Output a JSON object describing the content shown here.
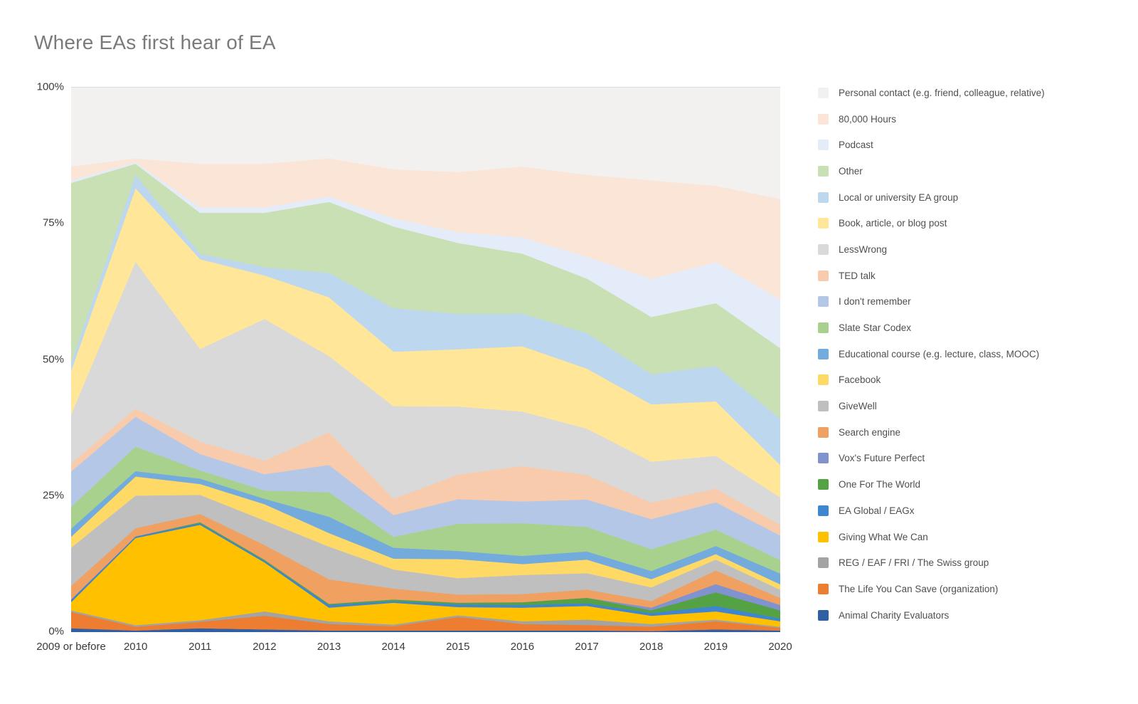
{
  "title": "Where EAs first hear of EA",
  "chart_data": {
    "type": "area",
    "stacked": true,
    "percent_stacked": true,
    "grid": false,
    "legend_position": "right",
    "ylim": [
      0,
      100
    ],
    "y_ticks": [
      "100%",
      "75%",
      "50%",
      "25%",
      "0%"
    ],
    "y_tick_values": [
      100,
      75,
      50,
      25,
      0
    ],
    "categories": [
      "2009 or before",
      "2010",
      "2011",
      "2012",
      "2013",
      "2014",
      "2015",
      "2016",
      "2017",
      "2018",
      "2019",
      "2020"
    ],
    "series": [
      {
        "name": "Personal contact (e.g. friend, colleague, relative)",
        "color": "#f2f1ef",
        "values": [
          14.5,
          13.0,
          14.0,
          14.0,
          13.0,
          15.0,
          15.5,
          14.5,
          16.0,
          17.0,
          18.0,
          20.5
        ]
      },
      {
        "name": "80,000 Hours",
        "color": "#fbe5d6",
        "values": [
          2.5,
          0.7,
          8.0,
          8.0,
          7.0,
          9.0,
          11.0,
          13.0,
          15.0,
          18.0,
          14.0,
          18.5
        ]
      },
      {
        "name": "Podcast",
        "color": "#e4ecf9",
        "values": [
          0.5,
          0.3,
          1.0,
          1.0,
          1.0,
          1.5,
          2.0,
          3.0,
          4.0,
          7.0,
          7.5,
          9.0
        ]
      },
      {
        "name": "Other",
        "color": "#c9e0b4",
        "values": [
          33.0,
          2.0,
          7.5,
          10.0,
          13.0,
          15.0,
          13.0,
          11.0,
          10.0,
          10.5,
          11.5,
          13.0
        ]
      },
      {
        "name": "Local or university EA group",
        "color": "#bdd7ee",
        "values": [
          1.5,
          2.5,
          1.0,
          1.5,
          4.5,
          8.0,
          6.5,
          6.0,
          6.5,
          5.5,
          6.5,
          8.5
        ]
      },
      {
        "name": "Book, article, or blog post",
        "color": "#ffe699",
        "values": [
          8.0,
          13.5,
          16.5,
          8.0,
          10.8,
          10.0,
          10.5,
          12.0,
          11.0,
          10.5,
          10.0,
          6.0
        ]
      },
      {
        "name": "LessWrong",
        "color": "#d9d9d9",
        "values": [
          9.0,
          27.0,
          17.0,
          26.0,
          14.0,
          17.0,
          12.5,
          10.0,
          8.5,
          7.5,
          6.0,
          5.0
        ]
      },
      {
        "name": "TED talk",
        "color": "#f8cbad",
        "values": [
          1.5,
          1.5,
          2.3,
          2.5,
          6.0,
          3.0,
          4.5,
          6.5,
          4.5,
          3.0,
          2.5,
          2.0
        ]
      },
      {
        "name": "I don't remember",
        "color": "#b4c7e7",
        "values": [
          6.5,
          5.5,
          3.0,
          3.0,
          5.0,
          4.0,
          4.5,
          4.0,
          5.0,
          5.5,
          5.0,
          4.5
        ]
      },
      {
        "name": "Slate Star Codex",
        "color": "#a9d18e",
        "values": [
          4.0,
          4.5,
          1.5,
          1.5,
          4.5,
          2.0,
          5.0,
          6.0,
          4.5,
          4.0,
          3.0,
          2.5
        ]
      },
      {
        "name": "Educational course (e.g. lecture, class, MOOC)",
        "color": "#74abdd",
        "values": [
          1.5,
          1.0,
          1.0,
          1.0,
          3.0,
          2.0,
          1.5,
          1.5,
          1.5,
          1.5,
          1.5,
          2.0
        ]
      },
      {
        "name": "Facebook",
        "color": "#ffd966",
        "values": [
          2.0,
          3.5,
          2.0,
          3.0,
          2.5,
          2.0,
          3.5,
          2.0,
          2.5,
          1.5,
          1.0,
          1.0
        ]
      },
      {
        "name": "GiveWell",
        "color": "#bfbfbf",
        "values": [
          7.0,
          6.0,
          3.5,
          4.5,
          6.0,
          3.5,
          3.0,
          3.5,
          3.0,
          2.5,
          2.0,
          1.5
        ]
      },
      {
        "name": "Search engine",
        "color": "#f0a060",
        "values": [
          2.5,
          1.5,
          1.5,
          2.7,
          4.5,
          2.0,
          1.5,
          1.5,
          1.5,
          1.2,
          2.5,
          1.3
        ]
      },
      {
        "name": "Vox's Future Perfect",
        "color": "#8093ce",
        "values": [
          0,
          0,
          0,
          0,
          0,
          0,
          0,
          0,
          0,
          0.5,
          1.5,
          1.0
        ]
      },
      {
        "name": "One For The World",
        "color": "#55a245",
        "values": [
          0,
          0,
          0.2,
          0.2,
          0.2,
          0.3,
          0.3,
          0.5,
          1.0,
          0.5,
          2.5,
          1.5
        ]
      },
      {
        "name": "EA Global / EAGx",
        "color": "#3e86d2",
        "values": [
          0.5,
          0.3,
          0.3,
          0.3,
          0.5,
          0.3,
          0.5,
          0.5,
          0.5,
          0.5,
          1.0,
          0.5
        ]
      },
      {
        "name": "Giving What We Can",
        "color": "#ffc000",
        "values": [
          1.5,
          16.0,
          17.5,
          9.0,
          2.5,
          4.0,
          1.5,
          2.5,
          2.5,
          1.5,
          1.5,
          1.0
        ]
      },
      {
        "name": "REG / EAF / FRI / The Swiss group",
        "color": "#a3a3a3",
        "values": [
          0.3,
          0.3,
          0.3,
          0.8,
          0.5,
          0.3,
          0.3,
          0.5,
          1.0,
          0.5,
          0.3,
          0.2
        ]
      },
      {
        "name": "The Life You Can Save (organization)",
        "color": "#ed7d31",
        "values": [
          3.0,
          0.7,
          1.2,
          2.5,
          1.2,
          0.8,
          2.5,
          1.2,
          1.0,
          0.8,
          1.5,
          0.5
        ]
      },
      {
        "name": "Animal Charity Evaluators",
        "color": "#2f5fa5",
        "values": [
          0.7,
          0.3,
          0.7,
          0.5,
          0.3,
          0.3,
          0.3,
          0.3,
          0.3,
          0.2,
          0.5,
          0.3
        ]
      }
    ]
  }
}
